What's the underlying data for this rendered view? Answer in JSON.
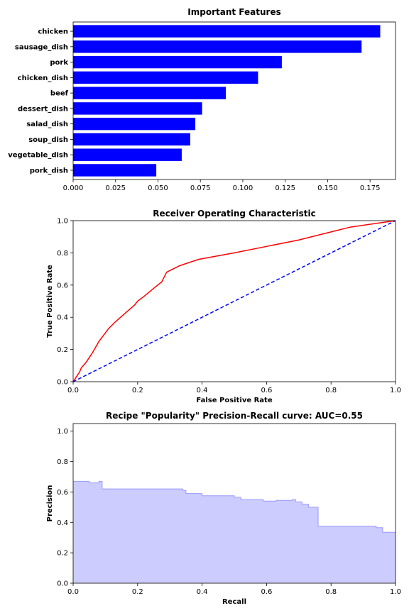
{
  "chart_data": [
    {
      "type": "bar",
      "orientation": "horizontal",
      "title": "Important Features",
      "categories": [
        "chicken",
        "sausage_dish",
        "pork",
        "chicken_dish",
        "beef",
        "dessert_dish",
        "salad_dish",
        "soup_dish",
        "vegetable_dish",
        "pork_dish"
      ],
      "values": [
        0.181,
        0.17,
        0.123,
        0.109,
        0.09,
        0.076,
        0.072,
        0.069,
        0.064,
        0.049
      ],
      "xlim": [
        0,
        0.19
      ],
      "xticks": [
        "0.000",
        "0.025",
        "0.050",
        "0.075",
        "0.100",
        "0.125",
        "0.150",
        "0.175"
      ],
      "xlabel": "",
      "ylabel": "",
      "color": "#0000ff",
      "grid": false
    },
    {
      "type": "line",
      "title": "Receiver Operating Characteristic",
      "xlabel": "False Positive Rate",
      "ylabel": "True Positive Rate",
      "xlim": [
        0,
        1
      ],
      "ylim": [
        0,
        1
      ],
      "xticks": [
        "0.0",
        "0.2",
        "0.4",
        "0.6",
        "0.8",
        "1.0"
      ],
      "yticks": [
        "0.0",
        "0.2",
        "0.4",
        "0.6",
        "0.8",
        "1.0"
      ],
      "grid": false,
      "series": [
        {
          "color": "#ff0000",
          "style": "solid",
          "x": [
            0,
            0.01,
            0.02,
            0.025,
            0.04,
            0.06,
            0.08,
            0.11,
            0.13,
            0.15,
            0.17,
            0.19,
            0.2,
            0.22,
            0.25,
            0.275,
            0.28,
            0.29,
            0.31,
            0.33,
            0.36,
            0.39,
            0.5,
            0.6,
            0.7,
            0.8,
            0.86,
            0.93,
            1.0
          ],
          "y": [
            0,
            0.03,
            0.06,
            0.085,
            0.12,
            0.18,
            0.25,
            0.33,
            0.37,
            0.405,
            0.44,
            0.475,
            0.5,
            0.53,
            0.58,
            0.62,
            0.64,
            0.68,
            0.7,
            0.72,
            0.74,
            0.76,
            0.8,
            0.84,
            0.88,
            0.93,
            0.96,
            0.98,
            1.0
          ]
        },
        {
          "color": "#0000ff",
          "style": "dashed",
          "x": [
            0,
            1
          ],
          "y": [
            0,
            1
          ]
        }
      ]
    },
    {
      "type": "area",
      "step": true,
      "title": "Recipe \"Popularity\" Precision-Recall curve: AUC=0.55",
      "xlabel": "Recall",
      "ylabel": "Precision",
      "xlim": [
        0,
        1
      ],
      "ylim": [
        0,
        1.05
      ],
      "xticks": [
        "0.0",
        "0.2",
        "0.4",
        "0.6",
        "0.8",
        "1.0"
      ],
      "yticks": [
        "0.0",
        "0.2",
        "0.4",
        "0.6",
        "0.8",
        "1.0"
      ],
      "grid": false,
      "fill_color": "#ccccff",
      "line_color": "#9999ff",
      "recall": [
        0,
        0.05,
        0.08,
        0.09,
        0.34,
        0.35,
        0.4,
        0.5,
        0.52,
        0.59,
        0.63,
        0.68,
        0.69,
        0.71,
        0.73,
        0.76,
        0.94,
        0.96,
        1.0
      ],
      "precision": [
        0.67,
        0.66,
        0.67,
        0.62,
        0.61,
        0.59,
        0.575,
        0.565,
        0.55,
        0.54,
        0.545,
        0.55,
        0.535,
        0.52,
        0.5,
        0.375,
        0.365,
        0.335,
        0.335
      ]
    }
  ]
}
